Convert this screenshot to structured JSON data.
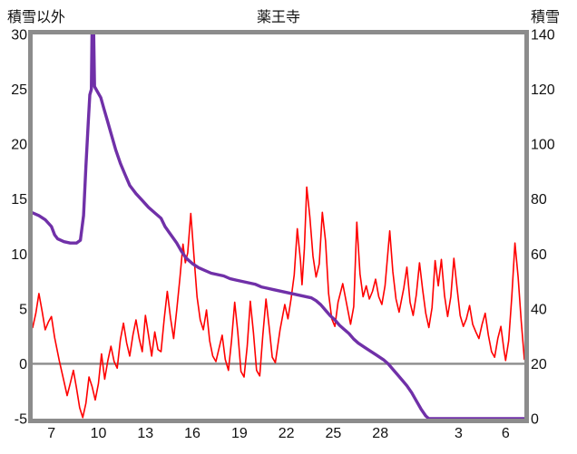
{
  "header": {
    "left_axis_title": "積雪以外",
    "title": "薬王寺",
    "right_axis_title": "積雪"
  },
  "styles": {
    "background": "#ffffff",
    "frame_color": "#8c8c8c",
    "zero_line_color": "#8c8c8c",
    "text_color": "#111111"
  },
  "chart_data": {
    "type": "line",
    "title": "薬王寺",
    "grid": false,
    "legend": "none",
    "x_axis": {
      "domain": [
        5.8,
        37.2
      ],
      "ticks": [
        7,
        10,
        13,
        16,
        19,
        22,
        25,
        28,
        33,
        36
      ],
      "tick_labels": [
        "7",
        "10",
        "13",
        "16",
        "19",
        "22",
        "25",
        "28",
        "3",
        "6"
      ]
    },
    "left_axis": {
      "title": "積雪以外",
      "min": -5,
      "max": 30,
      "ticks": [
        30,
        25,
        20,
        15,
        10,
        5,
        0,
        -5
      ]
    },
    "right_axis": {
      "title": "積雪",
      "min": 0,
      "max": 140,
      "ticks": [
        140,
        120,
        100,
        80,
        60,
        40,
        20,
        0
      ]
    },
    "zero_line_left_value": 0,
    "series": [
      {
        "key": "temperature-line",
        "name": "積雪以外",
        "axis": "left",
        "color": "#ff0000",
        "width": 1.6,
        "points": [
          [
            5.8,
            3.3
          ],
          [
            6,
            4.6
          ],
          [
            6.2,
            6.4
          ],
          [
            6.4,
            4.8
          ],
          [
            6.6,
            3.1
          ],
          [
            6.8,
            3.8
          ],
          [
            7,
            4.3
          ],
          [
            7.2,
            2.4
          ],
          [
            7.5,
            0.3
          ],
          [
            7.8,
            -1.6
          ],
          [
            8,
            -2.9
          ],
          [
            8.2,
            -1.8
          ],
          [
            8.4,
            -0.6
          ],
          [
            8.6,
            -2.2
          ],
          [
            8.8,
            -4
          ],
          [
            9,
            -4.9
          ],
          [
            9.2,
            -3.6
          ],
          [
            9.4,
            -1.2
          ],
          [
            9.6,
            -2.1
          ],
          [
            9.8,
            -3.3
          ],
          [
            10,
            -1.8
          ],
          [
            10.2,
            0.9
          ],
          [
            10.4,
            -1.4
          ],
          [
            10.6,
            0.3
          ],
          [
            10.8,
            1.6
          ],
          [
            11,
            0.2
          ],
          [
            11.2,
            -0.4
          ],
          [
            11.4,
            2.2
          ],
          [
            11.6,
            3.7
          ],
          [
            11.8,
            1.9
          ],
          [
            12,
            0.7
          ],
          [
            12.2,
            2.6
          ],
          [
            12.4,
            4
          ],
          [
            12.6,
            2.3
          ],
          [
            12.8,
            1.1
          ],
          [
            13,
            4.4
          ],
          [
            13.2,
            2.6
          ],
          [
            13.4,
            0.7
          ],
          [
            13.6,
            2.9
          ],
          [
            13.8,
            1.3
          ],
          [
            14,
            1.1
          ],
          [
            14.2,
            4.1
          ],
          [
            14.4,
            6.6
          ],
          [
            14.6,
            4.2
          ],
          [
            14.8,
            2.3
          ],
          [
            15,
            4.9
          ],
          [
            15.2,
            7.8
          ],
          [
            15.4,
            10.9
          ],
          [
            15.55,
            9.2
          ],
          [
            15.7,
            10.1
          ],
          [
            15.9,
            13.7
          ],
          [
            16.1,
            9.8
          ],
          [
            16.3,
            6.1
          ],
          [
            16.5,
            4
          ],
          [
            16.7,
            3.1
          ],
          [
            16.9,
            4.9
          ],
          [
            17.1,
            2.1
          ],
          [
            17.3,
            0.7
          ],
          [
            17.5,
            0.2
          ],
          [
            17.7,
            1.4
          ],
          [
            17.9,
            2.6
          ],
          [
            18.1,
            0.4
          ],
          [
            18.3,
            -0.6
          ],
          [
            18.5,
            2.1
          ],
          [
            18.7,
            5.6
          ],
          [
            18.9,
            2.9
          ],
          [
            19.1,
            -0.7
          ],
          [
            19.3,
            -1.2
          ],
          [
            19.5,
            1.6
          ],
          [
            19.7,
            5.7
          ],
          [
            19.9,
            2.8
          ],
          [
            20.1,
            -0.6
          ],
          [
            20.3,
            -1.1
          ],
          [
            20.5,
            2.6
          ],
          [
            20.7,
            5.9
          ],
          [
            20.9,
            3.4
          ],
          [
            21.1,
            0.6
          ],
          [
            21.3,
            0.1
          ],
          [
            21.6,
            3.1
          ],
          [
            21.9,
            5.4
          ],
          [
            22.1,
            4.1
          ],
          [
            22.3,
            5.9
          ],
          [
            22.5,
            8.1
          ],
          [
            22.7,
            12.3
          ],
          [
            22.9,
            9.4
          ],
          [
            23,
            7.2
          ],
          [
            23.15,
            10.5
          ],
          [
            23.3,
            16.1
          ],
          [
            23.5,
            13.4
          ],
          [
            23.7,
            9.8
          ],
          [
            23.9,
            7.9
          ],
          [
            24.1,
            9.1
          ],
          [
            24.3,
            13.8
          ],
          [
            24.5,
            11.2
          ],
          [
            24.7,
            6.4
          ],
          [
            24.9,
            4.1
          ],
          [
            25.1,
            3.4
          ],
          [
            25.3,
            5.6
          ],
          [
            25.6,
            7.3
          ],
          [
            25.9,
            5.1
          ],
          [
            26.1,
            3.6
          ],
          [
            26.3,
            5.2
          ],
          [
            26.5,
            12.9
          ],
          [
            26.7,
            8.2
          ],
          [
            26.9,
            6.1
          ],
          [
            27.1,
            7.1
          ],
          [
            27.3,
            5.9
          ],
          [
            27.5,
            6.6
          ],
          [
            27.7,
            7.7
          ],
          [
            27.9,
            6.1
          ],
          [
            28.1,
            5.4
          ],
          [
            28.3,
            7.1
          ],
          [
            28.6,
            12.1
          ],
          [
            28.8,
            8.4
          ],
          [
            29,
            5.9
          ],
          [
            29.2,
            4.7
          ],
          [
            29.5,
            6.9
          ],
          [
            29.7,
            8.8
          ],
          [
            29.9,
            5.6
          ],
          [
            30.1,
            4.4
          ],
          [
            30.3,
            6.3
          ],
          [
            30.5,
            9.2
          ],
          [
            30.7,
            6.8
          ],
          [
            30.9,
            4.6
          ],
          [
            31.1,
            3.3
          ],
          [
            31.3,
            5.1
          ],
          [
            31.5,
            9.4
          ],
          [
            31.7,
            7.1
          ],
          [
            31.9,
            9.5
          ],
          [
            32.1,
            6.2
          ],
          [
            32.3,
            4.3
          ],
          [
            32.5,
            6.1
          ],
          [
            32.7,
            9.6
          ],
          [
            32.9,
            6.9
          ],
          [
            33.1,
            4.4
          ],
          [
            33.3,
            3.4
          ],
          [
            33.5,
            4.1
          ],
          [
            33.7,
            5.3
          ],
          [
            33.9,
            3.6
          ],
          [
            34.1,
            2.9
          ],
          [
            34.3,
            2.3
          ],
          [
            34.5,
            3.6
          ],
          [
            34.7,
            4.6
          ],
          [
            34.9,
            2.6
          ],
          [
            35.1,
            1.1
          ],
          [
            35.3,
            0.6
          ],
          [
            35.5,
            2.3
          ],
          [
            35.7,
            3.4
          ],
          [
            35.9,
            1.2
          ],
          [
            36,
            0.3
          ],
          [
            36.2,
            2.1
          ],
          [
            36.4,
            6.2
          ],
          [
            36.6,
            11
          ],
          [
            36.8,
            7.9
          ],
          [
            37,
            3.9
          ],
          [
            37.2,
            0.4
          ]
        ]
      },
      {
        "key": "snow-depth-line",
        "name": "積雪",
        "axis": "right",
        "color": "#7030a8",
        "width": 3.4,
        "points": [
          [
            5.8,
            75
          ],
          [
            6.2,
            74
          ],
          [
            6.6,
            72.5
          ],
          [
            7,
            70
          ],
          [
            7.2,
            67
          ],
          [
            7.4,
            65.5
          ],
          [
            7.8,
            64.5
          ],
          [
            8.2,
            64
          ],
          [
            8.6,
            64
          ],
          [
            8.85,
            65
          ],
          [
            9.05,
            74
          ],
          [
            9.2,
            92
          ],
          [
            9.35,
            108
          ],
          [
            9.45,
            118
          ],
          [
            9.55,
            120
          ],
          [
            9.6,
            146
          ],
          [
            9.68,
            146
          ],
          [
            9.75,
            121
          ],
          [
            9.95,
            119
          ],
          [
            10.15,
            117
          ],
          [
            10.35,
            113
          ],
          [
            10.55,
            109
          ],
          [
            10.8,
            104
          ],
          [
            11.1,
            98
          ],
          [
            11.4,
            93
          ],
          [
            11.7,
            89
          ],
          [
            12,
            85
          ],
          [
            12.4,
            82
          ],
          [
            12.8,
            79.5
          ],
          [
            13.2,
            77
          ],
          [
            13.6,
            75
          ],
          [
            14,
            73
          ],
          [
            14.25,
            70
          ],
          [
            14.5,
            68
          ],
          [
            14.75,
            66
          ],
          [
            15,
            64
          ],
          [
            15.3,
            61
          ],
          [
            15.6,
            58.5
          ],
          [
            16,
            56.5
          ],
          [
            16.4,
            55
          ],
          [
            16.8,
            54
          ],
          [
            17.2,
            53
          ],
          [
            17.6,
            52.5
          ],
          [
            18,
            52
          ],
          [
            18.4,
            51
          ],
          [
            18.8,
            50.5
          ],
          [
            19.2,
            50
          ],
          [
            19.6,
            49.5
          ],
          [
            20,
            49
          ],
          [
            20.4,
            48
          ],
          [
            20.8,
            47.5
          ],
          [
            21.2,
            47
          ],
          [
            21.6,
            46.5
          ],
          [
            22,
            46
          ],
          [
            22.4,
            45.5
          ],
          [
            22.8,
            45
          ],
          [
            23.2,
            44.5
          ],
          [
            23.6,
            44
          ],
          [
            23.9,
            43
          ],
          [
            24.2,
            41.5
          ],
          [
            24.5,
            39.5
          ],
          [
            24.8,
            37.5
          ],
          [
            25.1,
            36
          ],
          [
            25.4,
            34
          ],
          [
            25.7,
            32.5
          ],
          [
            26,
            31
          ],
          [
            26.3,
            29
          ],
          [
            26.6,
            27.5
          ],
          [
            27,
            26
          ],
          [
            27.4,
            24.5
          ],
          [
            27.8,
            23
          ],
          [
            28.2,
            21.5
          ],
          [
            28.5,
            20
          ],
          [
            28.8,
            18
          ],
          [
            29.1,
            16
          ],
          [
            29.4,
            14
          ],
          [
            29.7,
            12
          ],
          [
            30,
            9.5
          ],
          [
            30.3,
            6.5
          ],
          [
            30.6,
            3.5
          ],
          [
            30.9,
            1
          ],
          [
            31.1,
            0
          ],
          [
            32,
            0
          ],
          [
            34,
            0
          ],
          [
            36,
            0
          ],
          [
            37.2,
            0
          ]
        ]
      }
    ]
  }
}
